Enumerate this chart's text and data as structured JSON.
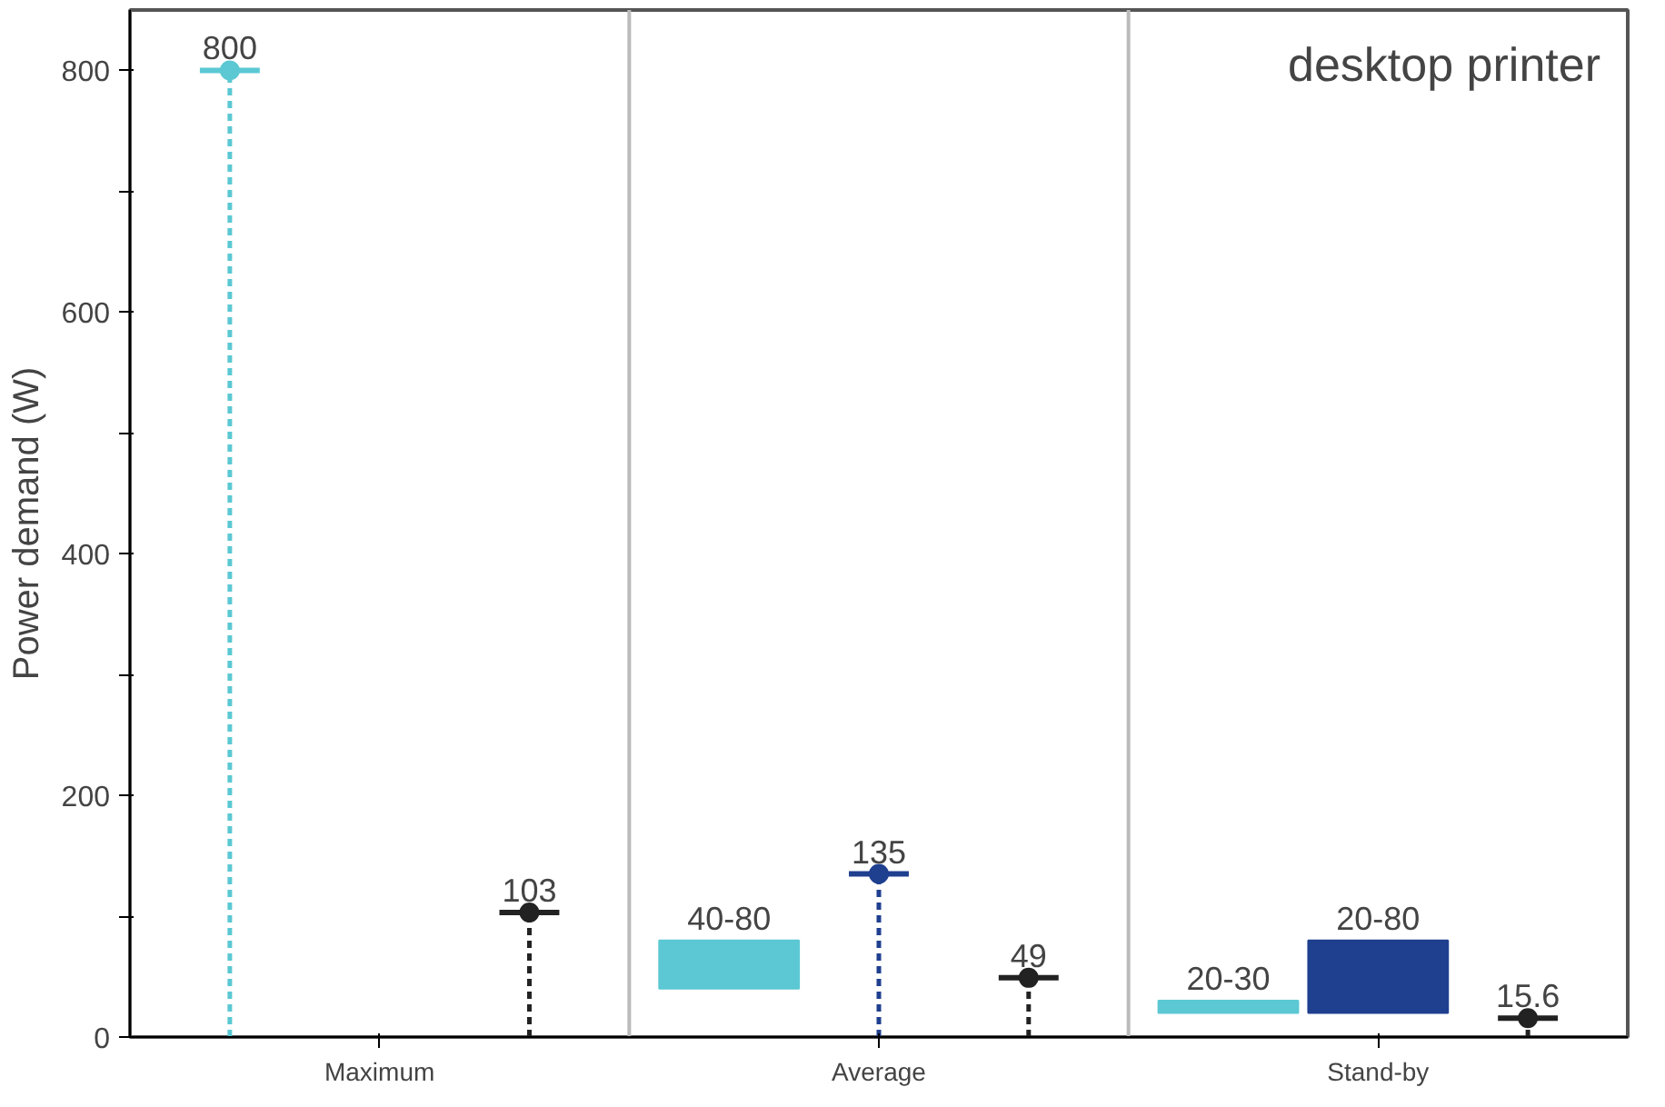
{
  "chart_data": {
    "type": "lollipop",
    "ylabel": "Power demand (W)",
    "categories": [
      "Maximum",
      "Average",
      "Stand-by"
    ],
    "ylim": [
      0,
      850
    ],
    "yticks": [
      0,
      {
        "value": 100,
        "label": null
      },
      200,
      {
        "value": 300,
        "label": null
      },
      400,
      {
        "value": 500,
        "label": null
      },
      600,
      {
        "value": 700,
        "label": null
      },
      800
    ],
    "grid": false,
    "marker": "circle",
    "line_style": "dashed",
    "annotations": [
      "desktop printer"
    ],
    "series": [
      {
        "type": "lollipop",
        "color": "#5bc8d3",
        "values": [
          800,
          null,
          null
        ],
        "value_labels": [
          "800",
          null,
          null
        ]
      },
      {
        "type": "bar",
        "color": "#5bc8d3",
        "base": [
          null,
          40,
          20
        ],
        "values": [
          null,
          40,
          10
        ],
        "value_labels": [
          null,
          "40-80",
          "20-30"
        ]
      },
      {
        "type": "lollipop",
        "color": "#1f3f8f",
        "values": [
          null,
          135,
          null
        ],
        "value_labels": [
          null,
          "135",
          null
        ]
      },
      {
        "type": "bar",
        "color": "#1f3f8f",
        "base": [
          null,
          null,
          20
        ],
        "values": [
          null,
          null,
          60
        ],
        "value_labels": [
          null,
          null,
          "20-80"
        ]
      },
      {
        "color": "#222222",
        "values": [
          103,
          49,
          15.6
        ],
        "value_labels": [
          "103",
          "49",
          "15.6"
        ]
      }
    ]
  }
}
